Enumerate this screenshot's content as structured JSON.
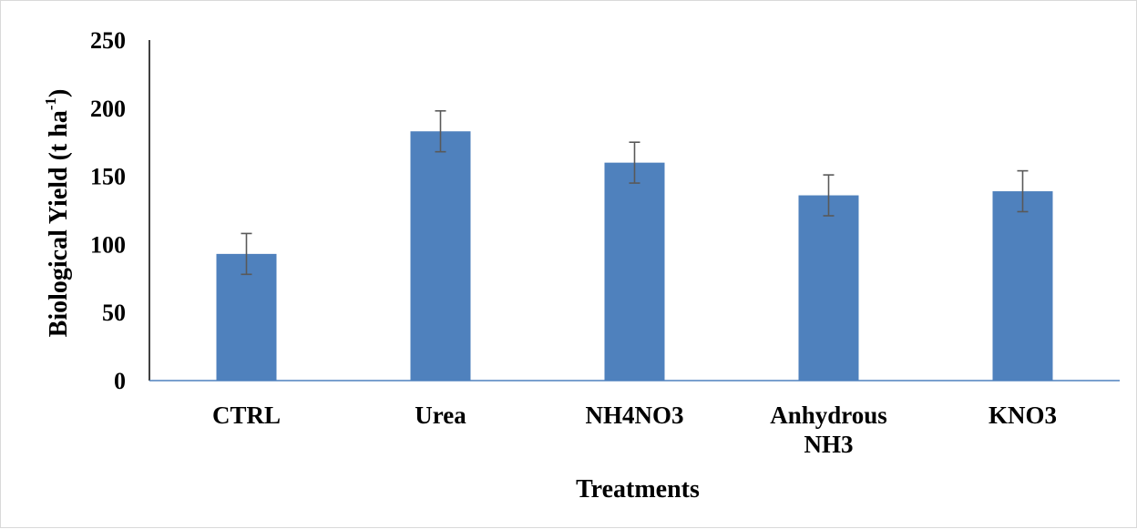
{
  "chart_data": {
    "type": "bar",
    "categories": [
      [
        "CTRL"
      ],
      [
        "Urea"
      ],
      [
        "NH4NO3"
      ],
      [
        "Anhydrous",
        "NH3"
      ],
      [
        "KNO3"
      ]
    ],
    "values": [
      93,
      183,
      160,
      136,
      139
    ],
    "error_bars": [
      15,
      15,
      15,
      15,
      15
    ],
    "xlabel": "Treatments",
    "ylabel": {
      "main": "Biological Yield (t ha",
      "superscript": "-1",
      "close": ")"
    },
    "ylim": [
      0,
      250
    ],
    "yticks": [
      0,
      50,
      100,
      150,
      200,
      250
    ],
    "grid": false,
    "legend": "none",
    "colors": {
      "bar": "#4f81bd",
      "axis": "#4f81bd",
      "error_bar": "#595959"
    }
  }
}
